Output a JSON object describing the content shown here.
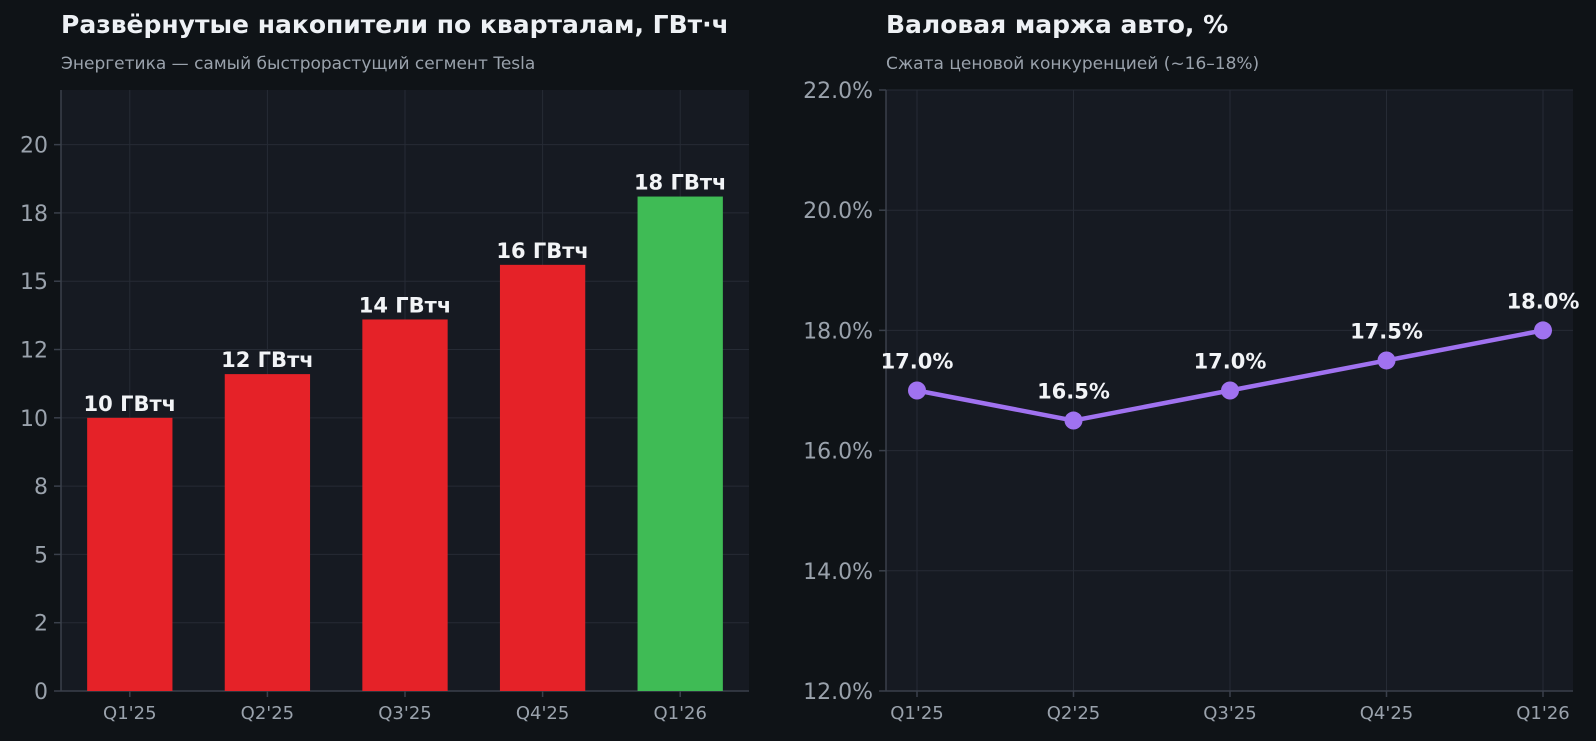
{
  "colors": {
    "background": "#0f1317",
    "plot_bg": "#161a22",
    "grid": "#262b35",
    "bar": "#e52228",
    "bar_highlight": "#3fbb55",
    "line": "#a072f0",
    "text": "#eef1f5",
    "muted": "#9aa2ac"
  },
  "chart_data": [
    {
      "type": "bar",
      "title": "Развёрнутые накопители по кварталам, ГВт·ч",
      "subtitle": "Энергетика — самый быстрорастущий сегмент Tesla",
      "categories": [
        "Q1'25",
        "Q2'25",
        "Q3'25",
        "Q4'25",
        "Q1'26"
      ],
      "values": [
        10.0,
        11.6,
        13.6,
        15.6,
        18.1
      ],
      "data_labels": [
        "10 ГВтч",
        "12 ГВтч",
        "14 ГВтч",
        "16 ГВтч",
        "18 ГВтч"
      ],
      "highlight_index": 4,
      "ylim": [
        0,
        22
      ],
      "yticks": [
        0,
        2.5,
        5,
        7.5,
        10,
        12.5,
        15,
        17.5,
        20
      ],
      "ytick_labels": [
        "0",
        "2",
        "5",
        "8",
        "10",
        "12",
        "15",
        "18",
        "20"
      ],
      "grid": true,
      "xlabel": "",
      "ylabel": ""
    },
    {
      "type": "line",
      "title": "Валовая маржа авто, %",
      "subtitle": "Сжата ценовой конкуренцией (~16–18%)",
      "categories": [
        "Q1'25",
        "Q2'25",
        "Q3'25",
        "Q4'25",
        "Q1'26"
      ],
      "values": [
        17.0,
        16.5,
        17.0,
        17.5,
        18.0
      ],
      "data_labels": [
        "17.0%",
        "16.5%",
        "17.0%",
        "17.5%",
        "18.0%"
      ],
      "ylim": [
        12,
        22
      ],
      "yticks": [
        12,
        14,
        16,
        18,
        20,
        22
      ],
      "ytick_labels": [
        "12.0%",
        "14.0%",
        "16.0%",
        "18.0%",
        "20.0%",
        "22.0%"
      ],
      "grid": true,
      "xlabel": "",
      "ylabel": ""
    }
  ]
}
